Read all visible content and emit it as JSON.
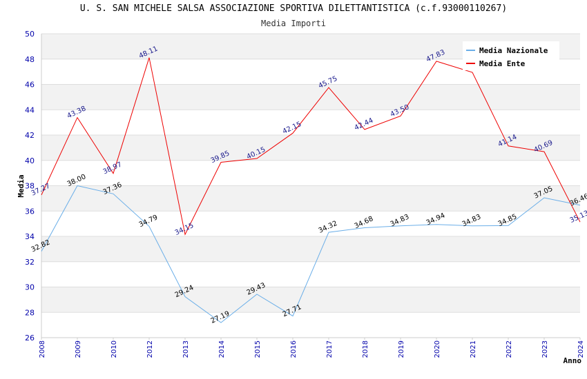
{
  "header": {
    "title": "U. S. SAN MICHELE SALSA ASSOCIAZIONE SPORTIVA DILETTANTISTICA (c.f.93000110267)",
    "subtitle": "Media Importi"
  },
  "colors": {
    "nazionale": "#6aaee8",
    "ente": "#ee0000",
    "band": "#f2f2f2",
    "grid": "#dddddd",
    "tick_text": "#0000aa"
  },
  "chart_data": {
    "type": "line",
    "title": "Media Importi",
    "xlabel": "Anno",
    "ylabel": "Media",
    "ylim": [
      26,
      50
    ],
    "yticks": [
      26,
      28,
      30,
      32,
      34,
      36,
      38,
      40,
      42,
      44,
      46,
      48,
      50
    ],
    "x": [
      "2008",
      "2009",
      "2010",
      "2012",
      "2013",
      "2014",
      "2015",
      "2016",
      "2017",
      "2018",
      "2019",
      "2020",
      "2021",
      "2022",
      "2023",
      "2024"
    ],
    "legend_position": "top-right",
    "grid": true,
    "series": [
      {
        "name": "Media Nazionale",
        "color": "#6aaee8",
        "values": [
          32.82,
          38.0,
          37.36,
          34.79,
          29.24,
          27.19,
          29.43,
          27.71,
          34.32,
          34.68,
          34.83,
          34.94,
          34.83,
          34.85,
          37.05,
          36.46
        ],
        "labels": [
          "32.82",
          "38.00",
          "37.36",
          "34.79",
          "29.24",
          "27.19",
          "29.43",
          "27.71",
          "34.32",
          "34.68",
          "34.83",
          "34.94",
          "34.83",
          "34.85",
          "37.05",
          "36.46"
        ]
      },
      {
        "name": "Media Ente",
        "color": "#ee0000",
        "values": [
          37.27,
          43.38,
          38.97,
          48.11,
          34.15,
          39.85,
          40.15,
          42.15,
          45.75,
          42.44,
          43.5,
          47.83,
          46.95,
          41.14,
          40.69,
          35.13
        ],
        "labels": [
          "37.27",
          "43.38",
          "38.97",
          "48.11",
          "34.15",
          "39.85",
          "40.15",
          "42.15",
          "45.75",
          "42.44",
          "43.50",
          "47.83",
          "",
          "41.14",
          "40.69",
          "35.13"
        ]
      }
    ]
  }
}
